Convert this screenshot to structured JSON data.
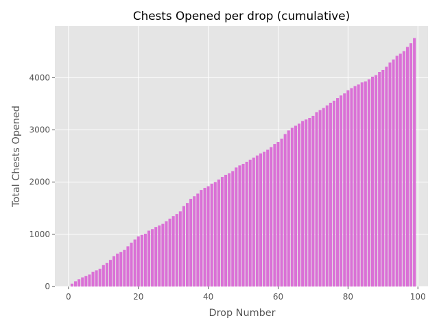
{
  "chart_data": {
    "type": "bar",
    "title": "Chests Opened per drop (cumulative)",
    "xlabel": "Drop Number",
    "ylabel": "Total Chests Opened",
    "xlim": [
      -3.9,
      102.9
    ],
    "ylim": [
      0,
      4990
    ],
    "xticks": [
      0,
      20,
      40,
      60,
      80,
      100
    ],
    "yticks": [
      0,
      1000,
      2000,
      3000,
      4000
    ],
    "grid": true,
    "bar_color": "#da70d6",
    "background_color": "#e5e5e5",
    "grid_color": "#ffffff",
    "x": [
      1,
      2,
      3,
      4,
      5,
      6,
      7,
      8,
      9,
      10,
      11,
      12,
      13,
      14,
      15,
      16,
      17,
      18,
      19,
      20,
      21,
      22,
      23,
      24,
      25,
      26,
      27,
      28,
      29,
      30,
      31,
      32,
      33,
      34,
      35,
      36,
      37,
      38,
      39,
      40,
      41,
      42,
      43,
      44,
      45,
      46,
      47,
      48,
      49,
      50,
      51,
      52,
      53,
      54,
      55,
      56,
      57,
      58,
      59,
      60,
      61,
      62,
      63,
      64,
      65,
      66,
      67,
      68,
      69,
      70,
      71,
      72,
      73,
      74,
      75,
      76,
      77,
      78,
      79,
      80,
      81,
      82,
      83,
      84,
      85,
      86,
      87,
      88,
      89,
      90,
      91,
      92,
      93,
      94,
      95,
      96,
      97,
      98,
      99
    ],
    "values": [
      55,
      100,
      140,
      175,
      200,
      230,
      280,
      310,
      340,
      410,
      450,
      510,
      580,
      630,
      660,
      700,
      770,
      840,
      900,
      960,
      990,
      1010,
      1070,
      1100,
      1140,
      1170,
      1200,
      1250,
      1300,
      1350,
      1390,
      1440,
      1540,
      1600,
      1680,
      1730,
      1780,
      1850,
      1890,
      1920,
      1970,
      2000,
      2050,
      2100,
      2140,
      2170,
      2210,
      2280,
      2320,
      2350,
      2390,
      2430,
      2470,
      2510,
      2550,
      2580,
      2620,
      2670,
      2730,
      2770,
      2830,
      2920,
      2990,
      3040,
      3080,
      3120,
      3170,
      3200,
      3230,
      3270,
      3340,
      3380,
      3420,
      3470,
      3520,
      3560,
      3610,
      3660,
      3700,
      3760,
      3800,
      3840,
      3870,
      3910,
      3930,
      3970,
      4020,
      4050,
      4110,
      4150,
      4210,
      4290,
      4350,
      4420,
      4460,
      4510,
      4590,
      4660,
      4760
    ]
  }
}
